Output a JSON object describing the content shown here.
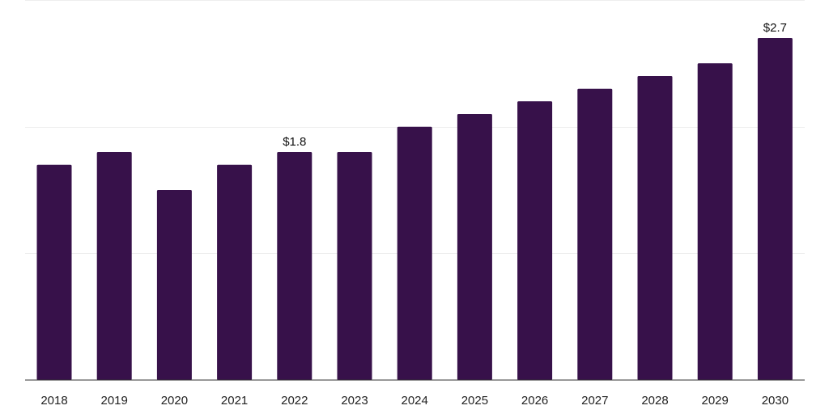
{
  "chart_data": {
    "type": "bar",
    "title": "",
    "xlabel": "",
    "ylabel": "",
    "categories": [
      "2018",
      "2019",
      "2020",
      "2021",
      "2022",
      "2023",
      "2024",
      "2025",
      "2026",
      "2027",
      "2028",
      "2029",
      "2030"
    ],
    "values": [
      1.7,
      1.8,
      1.5,
      1.7,
      1.8,
      1.8,
      2.0,
      2.1,
      2.2,
      2.3,
      2.4,
      2.5,
      2.7
    ],
    "data_labels": [
      {
        "category": "2022",
        "text": "$1.8"
      },
      {
        "category": "2030",
        "text": "$2.7"
      }
    ],
    "ylim": [
      0,
      3.0
    ],
    "gridlines": [
      1.0,
      2.0,
      3.0
    ],
    "grid": true,
    "legend": "none",
    "bar_color": "#37114a",
    "gridline_color": "#eeeeee",
    "baseline_color": "#333333"
  }
}
